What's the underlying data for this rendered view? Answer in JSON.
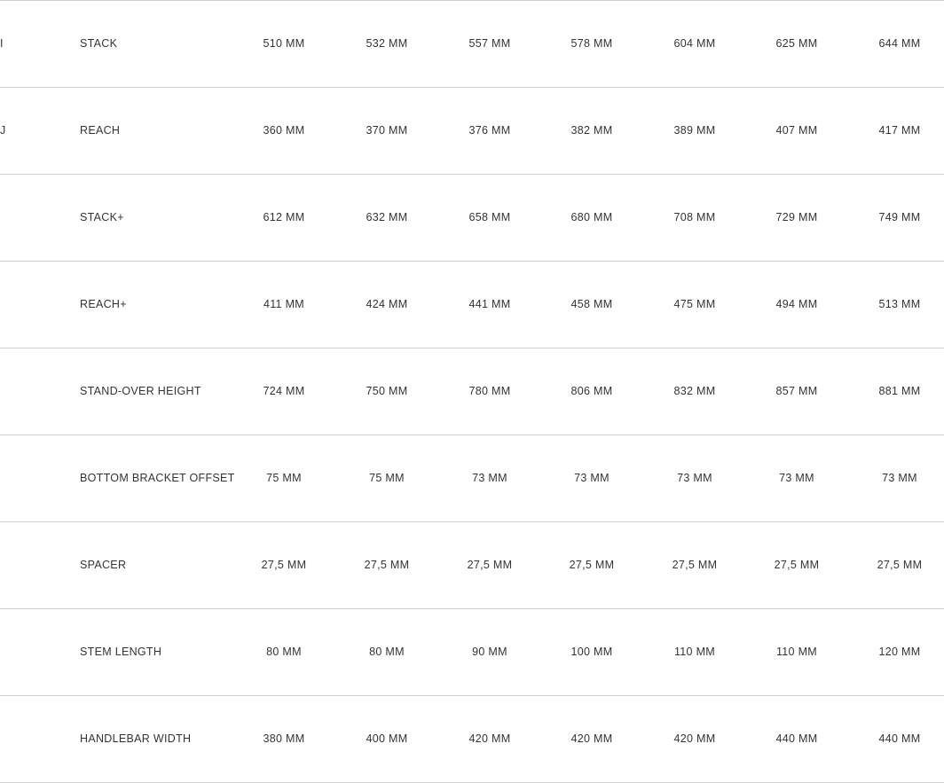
{
  "table": {
    "rows": [
      {
        "key": "I",
        "label": "STACK",
        "cells": [
          "510 MM",
          "532 MM",
          "557 MM",
          "578 MM",
          "604 MM",
          "625 MM",
          "644 MM"
        ]
      },
      {
        "key": "J",
        "label": "REACH",
        "cells": [
          "360 MM",
          "370 MM",
          "376 MM",
          "382 MM",
          "389 MM",
          "407 MM",
          "417 MM"
        ]
      },
      {
        "label": "STACK+",
        "cells": [
          "612 MM",
          "632 MM",
          "658 MM",
          "680 MM",
          "708 MM",
          "729 MM",
          "749 MM"
        ]
      },
      {
        "label": "REACH+",
        "cells": [
          "411 MM",
          "424 MM",
          "441 MM",
          "458 MM",
          "475 MM",
          "494 MM",
          "513 MM"
        ]
      },
      {
        "label": "STAND-OVER HEIGHT",
        "cells": [
          "724 MM",
          "750 MM",
          "780 MM",
          "806 MM",
          "832 MM",
          "857 MM",
          "881 MM"
        ]
      },
      {
        "label": "BOTTOM BRACKET OFFSET",
        "cells": [
          "75 MM",
          "75 MM",
          "73 MM",
          "73 MM",
          "73 MM",
          "73 MM",
          "73 MM"
        ]
      },
      {
        "label": "SPACER",
        "cells": [
          "27,5 MM",
          "27,5 MM",
          "27,5 MM",
          "27,5 MM",
          "27,5 MM",
          "27,5 MM",
          "27,5 MM"
        ]
      },
      {
        "label": "STEM LENGTH",
        "cells": [
          "80 MM",
          "80 MM",
          "90 MM",
          "100 MM",
          "110 MM",
          "110 MM",
          "120 MM"
        ]
      },
      {
        "label": "HANDLEBAR WIDTH",
        "cells": [
          "380 MM",
          "400 MM",
          "420 MM",
          "420 MM",
          "420 MM",
          "440 MM",
          "440 MM"
        ]
      }
    ]
  }
}
